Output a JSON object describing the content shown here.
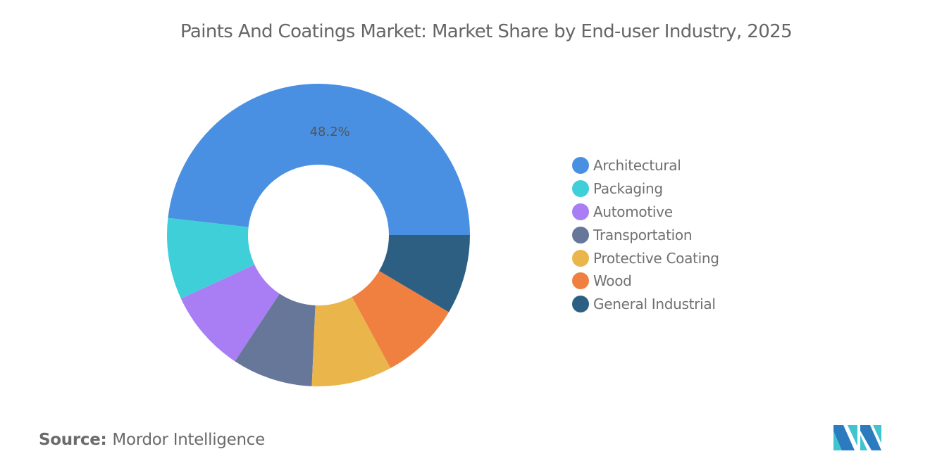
{
  "chart_data": {
    "type": "pie",
    "variant": "donut",
    "title": "Paints And Coatings Market: Market Share by End-user Industry, 2025",
    "categories": [
      "Architectural",
      "Packaging",
      "Automotive",
      "Transportation",
      "Protective Coating",
      "Wood",
      "General Industrial"
    ],
    "values": [
      48.2,
      8.7,
      8.8,
      8.6,
      8.6,
      8.6,
      8.5
    ],
    "unit": "%",
    "data_labels": [
      "48.2%",
      "",
      "",
      "",
      "",
      "",
      ""
    ],
    "colors": [
      "#4a90e2",
      "#3ecfd9",
      "#a97ef5",
      "#667799",
      "#eab54a",
      "#f08040",
      "#2d5f82"
    ],
    "legend_position": "right"
  },
  "source": {
    "label": "Source:",
    "value": "Mordor Intelligence"
  },
  "logo": {
    "name": "mordor-intelligence-logo",
    "colors": [
      "#2c7bbf",
      "#40c4cf"
    ]
  }
}
